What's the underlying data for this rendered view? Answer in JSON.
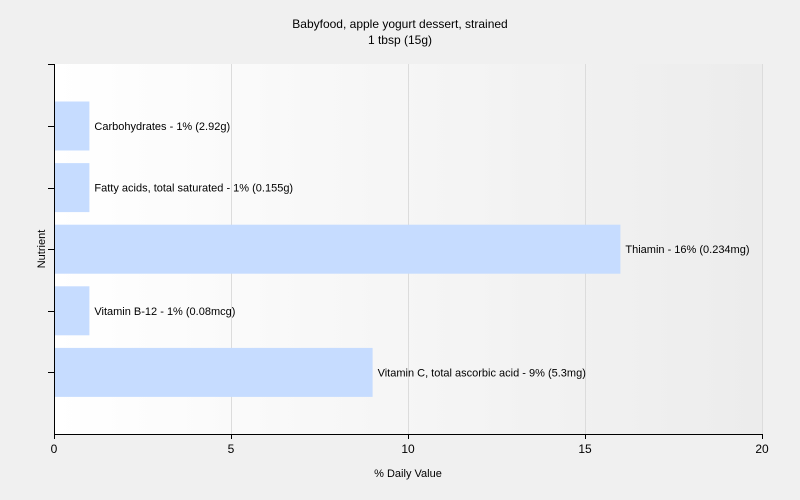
{
  "chart_data": {
    "type": "bar",
    "orientation": "horizontal",
    "title": "Babyfood, apple yogurt dessert, strained",
    "subtitle": "1 tbsp (15g)",
    "xlabel": "% Daily Value",
    "ylabel": "Nutrient",
    "xlim": [
      0,
      20
    ],
    "xticks": [
      0,
      5,
      10,
      15,
      20
    ],
    "grid": true,
    "bar_color": "#c6dcff",
    "categories": [
      "Carbohydrates",
      "Fatty acids, total saturated",
      "Thiamin",
      "Vitamin B-12",
      "Vitamin C, total ascorbic acid"
    ],
    "values": [
      1,
      1,
      16,
      1,
      9
    ],
    "data_labels": [
      "Carbohydrates - 1% (2.92g)",
      "Fatty acids, total saturated - 1% (0.155g)",
      "Thiamin - 16% (0.234mg)",
      "Vitamin B-12 - 1% (0.08mcg)",
      "Vitamin C, total ascorbic acid - 9% (5.3mg)"
    ]
  }
}
